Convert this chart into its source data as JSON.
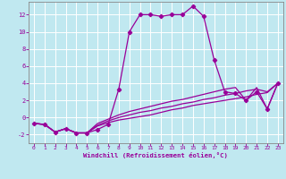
{
  "xlabel": "Windchill (Refroidissement éolien,°C)",
  "bg_color": "#c0e8f0",
  "line_color": "#990099",
  "grid_color": "#aaccdd",
  "xlim": [
    -0.5,
    23.5
  ],
  "ylim": [
    -3.0,
    13.5
  ],
  "yticks": [
    -2,
    0,
    2,
    4,
    6,
    8,
    10,
    12
  ],
  "xticks": [
    0,
    1,
    2,
    3,
    4,
    5,
    6,
    7,
    8,
    9,
    10,
    11,
    12,
    13,
    14,
    15,
    16,
    17,
    18,
    19,
    20,
    21,
    22,
    23
  ],
  "line1_x": [
    0,
    1,
    2,
    3,
    4,
    5,
    6,
    7,
    8,
    9,
    10,
    11,
    12,
    13,
    14,
    15,
    16,
    17,
    18,
    19,
    20,
    21,
    22,
    23
  ],
  "line1_y": [
    -0.7,
    -0.8,
    -1.7,
    -1.3,
    -1.8,
    -1.8,
    -1.4,
    -0.8,
    3.3,
    10.0,
    12.0,
    12.0,
    11.8,
    12.0,
    12.0,
    13.0,
    11.8,
    6.7,
    3.0,
    2.8,
    2.0,
    3.0,
    1.0,
    4.0
  ],
  "line2_x": [
    0,
    1,
    2,
    3,
    4,
    5,
    6,
    7,
    8,
    9,
    10,
    11,
    12,
    13,
    14,
    15,
    16,
    17,
    18,
    19,
    20,
    21,
    22,
    23
  ],
  "line2_y": [
    -0.7,
    -0.8,
    -1.7,
    -1.3,
    -1.8,
    -1.8,
    -1.0,
    -0.6,
    -0.3,
    -0.1,
    0.1,
    0.3,
    0.6,
    0.9,
    1.1,
    1.4,
    1.6,
    1.8,
    2.0,
    2.2,
    2.4,
    2.7,
    2.9,
    4.0
  ],
  "line3_x": [
    0,
    1,
    2,
    3,
    4,
    5,
    6,
    7,
    8,
    9,
    10,
    11,
    12,
    13,
    14,
    15,
    16,
    17,
    18,
    19,
    20,
    21,
    22,
    23
  ],
  "line3_y": [
    -0.7,
    -0.8,
    -1.7,
    -1.3,
    -1.8,
    -1.8,
    -0.9,
    -0.4,
    0.0,
    0.3,
    0.6,
    0.8,
    1.1,
    1.3,
    1.6,
    1.8,
    2.1,
    2.3,
    2.6,
    2.8,
    3.1,
    3.3,
    3.0,
    4.0
  ],
  "line4_x": [
    0,
    1,
    2,
    3,
    4,
    5,
    6,
    7,
    8,
    9,
    10,
    11,
    12,
    13,
    14,
    15,
    16,
    17,
    18,
    19,
    20,
    21,
    22,
    23
  ],
  "line4_y": [
    -0.7,
    -0.8,
    -1.7,
    -1.3,
    -1.8,
    -1.8,
    -0.7,
    -0.2,
    0.3,
    0.7,
    1.0,
    1.3,
    1.6,
    1.9,
    2.1,
    2.4,
    2.7,
    3.0,
    3.3,
    3.5,
    2.0,
    3.5,
    1.0,
    4.0
  ]
}
